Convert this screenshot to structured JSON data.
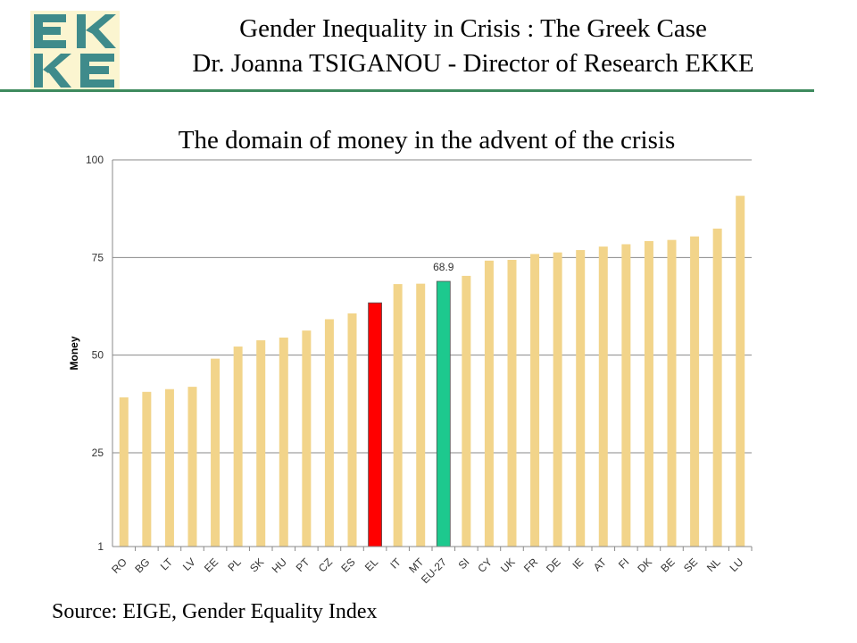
{
  "header": {
    "logo_text": "EKKE",
    "title": "Gender Inequality in Crisis : The Greek Case",
    "subtitle": "Dr. Joanna TSIGANOU - Director of Research EKKE"
  },
  "source": "Source: EIGE, Gender Equality Index",
  "colors": {
    "default_bar": "#f2d48a",
    "highlight_el": "#ff0000",
    "highlight_eu": "#1dc98e",
    "header_rule": "#3e8a5e",
    "logo_letters": "#3f8b8b",
    "logo_bg": "#fbf5d0"
  },
  "chart_data": {
    "type": "bar",
    "title": "The domain of money in the advent of the crisis",
    "ylabel": "Money",
    "xlabel": "",
    "ylim": [
      1,
      100
    ],
    "yticks": [
      1,
      25,
      50,
      75,
      100
    ],
    "grid": true,
    "categories": [
      "RO",
      "BG",
      "LT",
      "LV",
      "EE",
      "PL",
      "SK",
      "HU",
      "PT",
      "CZ",
      "ES",
      "EL",
      "IT",
      "MT",
      "EU-27",
      "SI",
      "CY",
      "UK",
      "FR",
      "DE",
      "IE",
      "AT",
      "FI",
      "DK",
      "BE",
      "SE",
      "NL",
      "LU"
    ],
    "values": [
      39.2,
      40.6,
      41.3,
      41.9,
      49.1,
      52.2,
      53.8,
      54.5,
      56.3,
      59.2,
      60.7,
      63.4,
      68.2,
      68.3,
      68.9,
      70.3,
      74.2,
      74.4,
      75.9,
      76.3,
      76.9,
      77.8,
      78.4,
      79.2,
      79.5,
      80.4,
      82.4,
      90.8
    ],
    "highlights": {
      "EL": "highlight_el",
      "EU-27": "highlight_eu"
    },
    "annotations": [
      {
        "category": "EU-27",
        "text": "68.9"
      }
    ]
  }
}
